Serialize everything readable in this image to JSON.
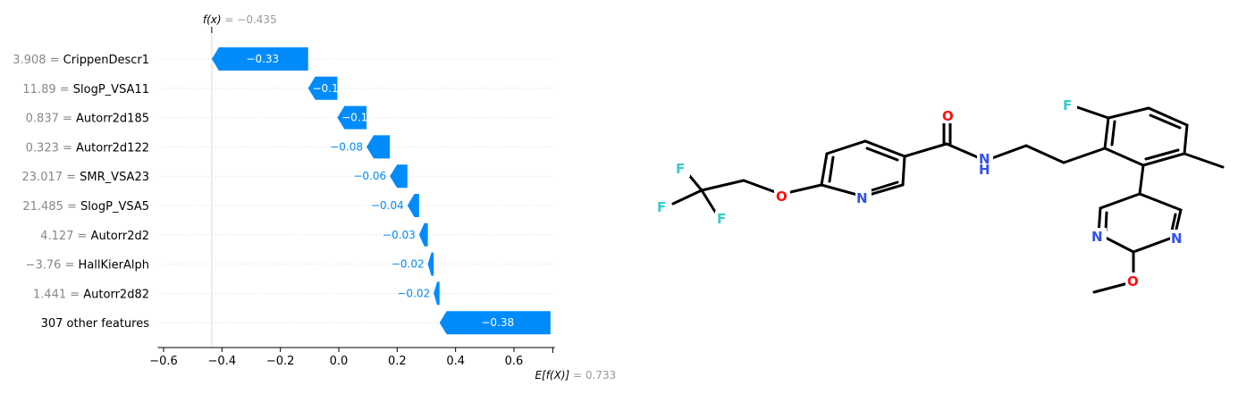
{
  "chart_data": {
    "type": "waterfall",
    "fx_label": "f(x) = −0.435",
    "fx": -0.435,
    "efx_label": "E[f(X)] = 0.733",
    "efx": 0.733,
    "xlim": [
      -0.62,
      0.74
    ],
    "xticks": [
      -0.6,
      -0.4,
      -0.2,
      0.0,
      0.2,
      0.4,
      0.6
    ],
    "xtick_labels": [
      "−0.6",
      "−0.4",
      "−0.2",
      "0.0",
      "0.2",
      "0.4",
      "0.6"
    ],
    "features": [
      {
        "value": "3.908",
        "name": "CrippenDescr1",
        "contribution": -0.33,
        "label": "−0.33"
      },
      {
        "value": "11.89",
        "name": "SlogP_VSA11",
        "contribution": -0.1,
        "label": "−0.1"
      },
      {
        "value": "0.837",
        "name": "Autorr2d185",
        "contribution": -0.1,
        "label": "−0.1"
      },
      {
        "value": "0.323",
        "name": "Autorr2d122",
        "contribution": -0.08,
        "label": "−0.08"
      },
      {
        "value": "23.017",
        "name": "SMR_VSA23",
        "contribution": -0.06,
        "label": "−0.06"
      },
      {
        "value": "21.485",
        "name": "SlogP_VSA5",
        "contribution": -0.04,
        "label": "−0.04"
      },
      {
        "value": "4.127",
        "name": "Autorr2d2",
        "contribution": -0.03,
        "label": "−0.03"
      },
      {
        "value": "−3.76",
        "name": "HallKierAlph",
        "contribution": -0.02,
        "label": "−0.02"
      },
      {
        "value": "1.441",
        "name": "Autorr2d82",
        "contribution": -0.02,
        "label": "−0.02"
      },
      {
        "value": "",
        "name": "307 other features",
        "contribution": -0.38,
        "label": "−0.38"
      }
    ],
    "bar_color": "#008bfb"
  },
  "molecule": {
    "atoms": [
      "F",
      "F",
      "F",
      "O",
      "N",
      "O",
      "N",
      "H",
      "F",
      "N",
      "N",
      "O"
    ],
    "colors": {
      "F": "#33cccc",
      "O": "#ff0d0d",
      "N": "#3050f8",
      "bond": "#000000"
    }
  }
}
